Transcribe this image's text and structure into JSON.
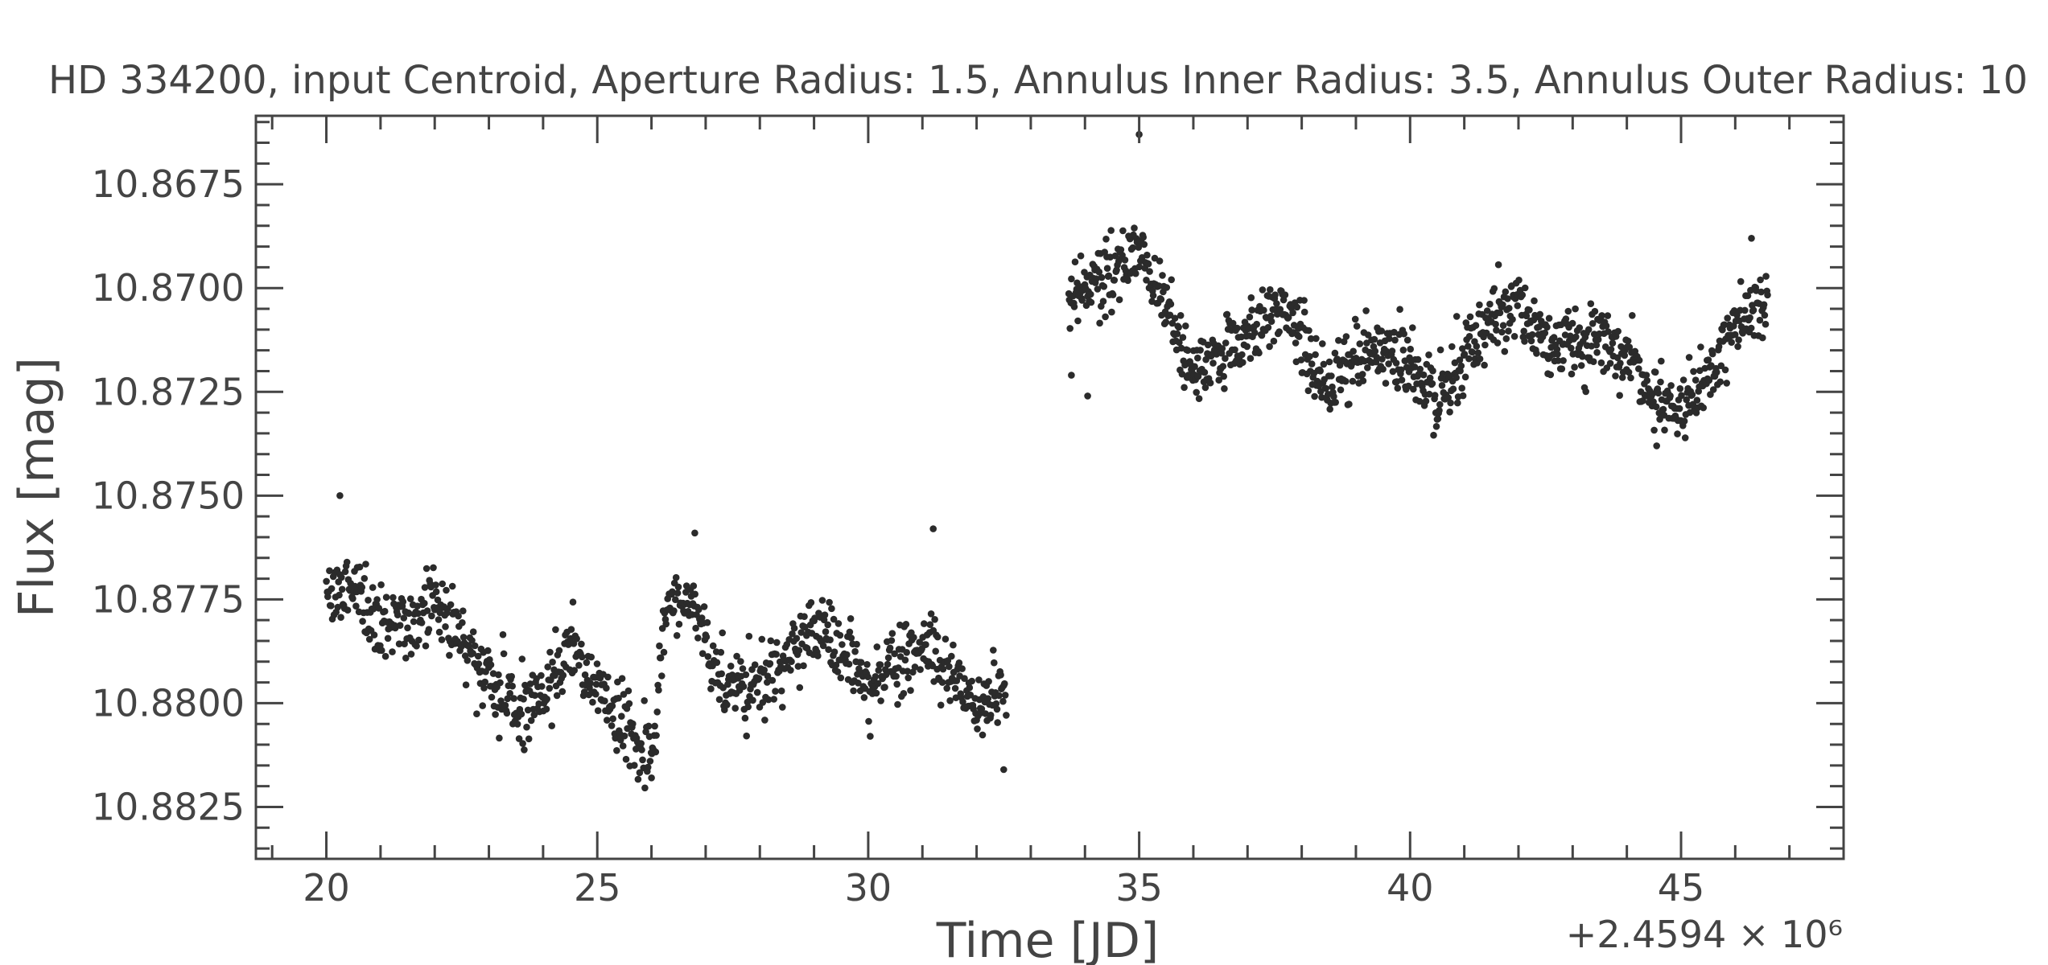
{
  "chart_data": {
    "type": "scatter",
    "title": "HD 334200, input Centroid, Aperture Radius: 1.5, Annulus Inner Radius: 3.5, Annulus Outer Radius: 10",
    "xlabel": "Time [JD]",
    "ylabel": "Flux [mag]",
    "x_offset_label": "+2.4594 × 10⁶",
    "x_offset": 2459400,
    "xlim": [
      18.7,
      48.0
    ],
    "ylim": [
      10.88375,
      10.86585
    ],
    "y_inverted": true,
    "x_ticks": [
      20,
      25,
      30,
      35,
      40,
      45
    ],
    "x_tick_labels": [
      "20",
      "25",
      "30",
      "35",
      "40",
      "45"
    ],
    "y_ticks": [
      10.8675,
      10.87,
      10.8725,
      10.875,
      10.8775,
      10.88,
      10.8825
    ],
    "y_tick_labels": [
      "10.8675",
      "10.8700",
      "10.8725",
      "10.8750",
      "10.8775",
      "10.8800",
      "10.8825"
    ],
    "grid": false,
    "legend": "none",
    "marker_color": "#2b2b2b",
    "series": [
      {
        "segments": [
          {
            "x_start": 20.0,
            "x_end": 32.55,
            "step": 0.014,
            "trend": [
              [
                20.0,
                10.8775
              ],
              [
                20.5,
                10.8773
              ],
              [
                21.0,
                10.8781
              ],
              [
                21.6,
                10.878
              ],
              [
                22.0,
                10.8775
              ],
              [
                22.5,
                10.8785
              ],
              [
                23.0,
                10.8795
              ],
              [
                23.5,
                10.8801
              ],
              [
                24.0,
                10.8797
              ],
              [
                24.5,
                10.8787
              ],
              [
                25.0,
                10.8795
              ],
              [
                25.5,
                10.8805
              ],
              [
                26.0,
                10.8812
              ],
              [
                26.3,
                10.8775
              ],
              [
                26.8,
                10.8777
              ],
              [
                27.3,
                10.8795
              ],
              [
                28.0,
                10.8795
              ],
              [
                28.5,
                10.879
              ],
              [
                29.0,
                10.8781
              ],
              [
                29.5,
                10.8787
              ],
              [
                30.0,
                10.8795
              ],
              [
                30.5,
                10.8791
              ],
              [
                31.0,
                10.8785
              ],
              [
                31.5,
                10.8792
              ],
              [
                32.0,
                10.8802
              ],
              [
                32.55,
                10.8797
              ]
            ],
            "scatter": 0.001,
            "outliers": [
              [
                26.0,
                10.8818
              ],
              [
                20.25,
                10.875
              ],
              [
                32.5,
                10.8816
              ],
              [
                26.8,
                10.8759
              ],
              [
                31.2,
                10.8758
              ]
            ]
          },
          {
            "x_start": 33.7,
            "x_end": 46.6,
            "step": 0.013,
            "trend": [
              [
                33.7,
                10.8702
              ],
              [
                34.5,
                10.8697
              ],
              [
                35.0,
                10.869
              ],
              [
                35.5,
                10.8702
              ],
              [
                36.0,
                10.8721
              ],
              [
                36.5,
                10.8716
              ],
              [
                37.0,
                10.8711
              ],
              [
                37.5,
                10.8703
              ],
              [
                38.0,
                10.8713
              ],
              [
                38.5,
                10.8724
              ],
              [
                39.0,
                10.8717
              ],
              [
                39.5,
                10.8713
              ],
              [
                40.0,
                10.8718
              ],
              [
                40.5,
                10.8728
              ],
              [
                41.0,
                10.8718
              ],
              [
                41.5,
                10.8708
              ],
              [
                42.0,
                10.8703
              ],
              [
                42.5,
                10.8712
              ],
              [
                43.0,
                10.8715
              ],
              [
                43.5,
                10.8713
              ],
              [
                44.0,
                10.8715
              ],
              [
                44.5,
                10.8725
              ],
              [
                45.0,
                10.8729
              ],
              [
                45.5,
                10.8722
              ],
              [
                46.0,
                10.8708
              ],
              [
                46.6,
                10.8703
              ]
            ],
            "scatter": 0.001,
            "outliers": [
              [
                35.0,
                10.8663
              ],
              [
                33.75,
                10.8721
              ],
              [
                34.05,
                10.8726
              ],
              [
                44.55,
                10.8738
              ],
              [
                46.3,
                10.8688
              ]
            ]
          }
        ]
      }
    ]
  }
}
